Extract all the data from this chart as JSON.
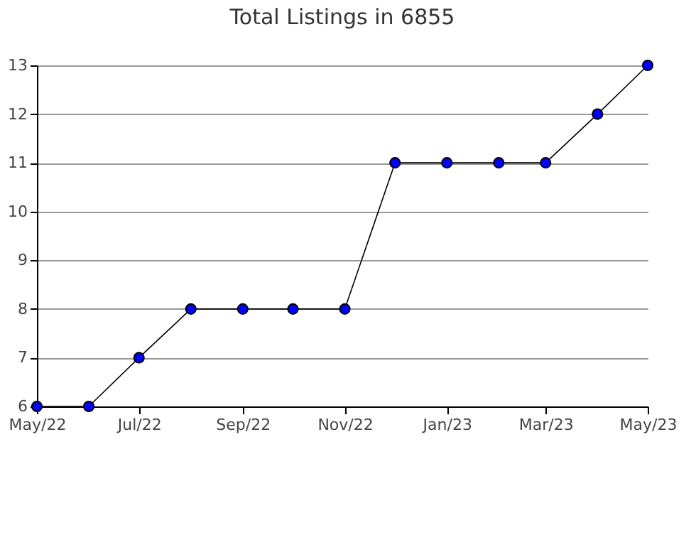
{
  "chart_data": {
    "type": "line",
    "title": "Total Listings in 6855",
    "x": [
      "2022-05",
      "2022-06",
      "2022-07",
      "2022-08",
      "2022-09",
      "2022-10",
      "2022-11",
      "2022-12",
      "2023-01",
      "2023-02",
      "2023-03",
      "2023-04",
      "2023-05"
    ],
    "series": [
      {
        "color": "#0000ff",
        "values": [
          6,
          6,
          7,
          8,
          8,
          8,
          8,
          11,
          11,
          11,
          11,
          12,
          13
        ]
      }
    ],
    "xlim": [
      "2022-05",
      "2023-05"
    ],
    "xticks": [
      {
        "value": "2022-05",
        "label": "May/22"
      },
      {
        "value": "2022-07",
        "label": "Jul/22"
      },
      {
        "value": "2022-09",
        "label": "Sep/22"
      },
      {
        "value": "2022-11",
        "label": "Nov/22"
      },
      {
        "value": "2023-01",
        "label": "Jan/23"
      },
      {
        "value": "2023-03",
        "label": "Mar/23"
      },
      {
        "value": "2023-05",
        "label": "May/23"
      }
    ],
    "ylim": [
      6,
      13
    ],
    "yticks": [
      6,
      7,
      8,
      9,
      10,
      11,
      12,
      13
    ],
    "grid": "y",
    "marker": "circle",
    "line_style": "solid"
  }
}
